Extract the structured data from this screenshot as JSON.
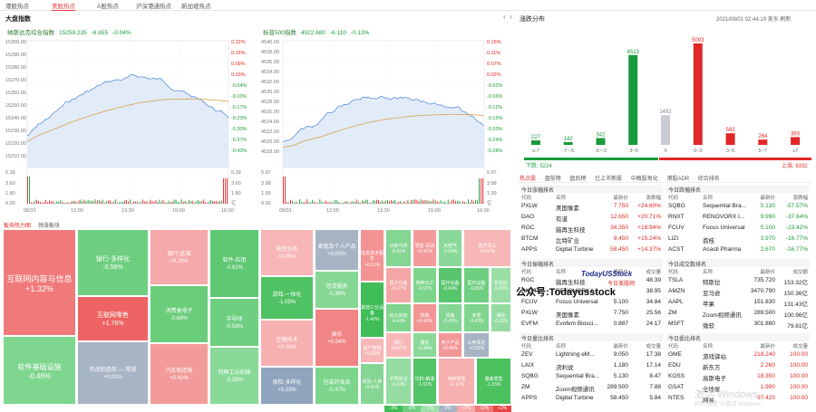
{
  "colors": {
    "up": "#e02626",
    "down": "#1a9a3a",
    "line": "#5b8fd9",
    "avg": "#d9a04a",
    "fill": "#dbe7f8"
  },
  "top_tabs": [
    "港股热点",
    "美股热点",
    "A股热点",
    "沪深港通热点",
    "新加坡热点"
  ],
  "top_tabs_active": 1,
  "section_title": "大盘指数",
  "panel1": {
    "name": "纳斯达克综合指数",
    "value": "15259.235",
    "chg": "-6.655",
    "pct": "-0.04%",
    "left_ticks": [
      "15300.00",
      "15290.00",
      "15280.00",
      "15270.00",
      "15260.00",
      "15250.00",
      "15240.00",
      "15230.00",
      "15220.00",
      "15210.00"
    ],
    "right_ticks": [
      "0.22%",
      "0.16%",
      "0.09%",
      "0.03%",
      "-0.04%",
      "-0.10%",
      "-0.17%",
      "-0.23%",
      "-0.30%",
      "-0.37%",
      "-0.43%"
    ],
    "vol_left": [
      "5.39",
      "3.60",
      "1.80",
      "0.00"
    ],
    "vol_right": [
      "5.39",
      "3.60",
      "1.80",
      "亿"
    ],
    "x_labels": [
      "08/31",
      "12:00",
      "13:30",
      "15:00",
      "16:00"
    ]
  },
  "panel2": {
    "name": "标普500指数",
    "value": "4522.680",
    "chg": "-6.110",
    "pct": "-0.13%",
    "left_ticks": [
      "4540.00",
      "4538.00",
      "4536.00",
      "4534.00",
      "4532.00",
      "4530.00",
      "4528.00",
      "4526.00",
      "4524.00",
      "4522.00",
      "4520.00",
      "4518.00"
    ],
    "right_ticks": [
      "0.16%",
      "0.11%",
      "0.07%",
      "0.02%",
      "-0.02%",
      "-0.06%",
      "-0.11%",
      "-0.15%",
      "-0.20%",
      "-0.24%",
      "-0.28%"
    ],
    "vol_left": [
      "5.97",
      "3.98",
      "1.99",
      "0.00"
    ],
    "vol_right": [
      "5.97",
      "3.98",
      "1.99",
      "亿"
    ],
    "x_labels": [
      "08/31",
      "12:00",
      "13:30",
      "15:00",
      "16:00"
    ]
  },
  "dist": {
    "title": "涨跌分布",
    "timestamp": "2021/09/01 02:44:19 美东",
    "refresh": "刷新",
    "down_label": "下跌: 5224",
    "up_label": "上涨: 6332"
  },
  "chart_data": {
    "type": "bar",
    "categories": [
      "≤-7",
      "-7~-5",
      "-5~-3",
      "-3~0",
      "0",
      "0~3",
      "3~5",
      "5~7",
      "≥7"
    ],
    "values": [
      227,
      142,
      342,
      4513,
      1492,
      5093,
      582,
      264,
      393
    ],
    "colors": [
      "#1a9a3a",
      "#1a9a3a",
      "#1a9a3a",
      "#1a9a3a",
      "#c9ccd2",
      "#e02626",
      "#e02626",
      "#e02626",
      "#e02626"
    ]
  },
  "heat": {
    "tabs": [
      "板块热力图",
      "领涨板块"
    ],
    "tiles": [
      {
        "name": "互联网内容与信息",
        "pct": "+1.32%",
        "color": "#f07a7a"
      },
      {
        "name": "软件基础设施",
        "pct": "-0.46%",
        "color": "#7fd68f"
      },
      {
        "name": "银行-多样化",
        "pct": "-0.56%",
        "color": "#6fcf80"
      },
      {
        "name": "互联网零售",
        "pct": "+1.76%",
        "color": "#ee6464"
      },
      {
        "name": "药品制造商 — 常规",
        "pct": "+0.01%",
        "color": "#a7b4c4"
      },
      {
        "name": "银行-区域",
        "pct": "+0.25%",
        "color": "#f5a9a9"
      },
      {
        "name": "消费类电子",
        "pct": "-0.68%",
        "color": "#6acd7b"
      },
      {
        "name": "汽车制造商",
        "pct": "+0.41%",
        "color": "#f39b9b"
      },
      {
        "name": "软件-应用",
        "pct": "-0.81%",
        "color": "#5fc872"
      },
      {
        "name": "半导体",
        "pct": "-0.59%",
        "color": "#6fcf80"
      },
      {
        "name": "特种工业机械",
        "pct": "-0.35%",
        "color": "#8ad998"
      },
      {
        "name": "电信业务",
        "pct": "+0.05%",
        "color": "#f7b7b7"
      },
      {
        "name": "游戏-一体化",
        "pct": "-1.05%",
        "color": "#4fc263"
      },
      {
        "name": "生物技术",
        "pct": "+0.10%",
        "color": "#f6b0b0"
      },
      {
        "name": "保险-多样化",
        "pct": "+0.03%",
        "color": "#8fa4bd"
      },
      {
        "name": "家庭及个人产品",
        "pct": "+0.00%",
        "color": "#a7b4c4"
      },
      {
        "name": "信贷服务",
        "pct": "-0.39%",
        "color": "#86d794"
      },
      {
        "name": "娱乐",
        "pct": "+0.94%",
        "color": "#f18585"
      },
      {
        "name": "包装的食品",
        "pct": "-0.47%",
        "color": "#7cd58b"
      },
      {
        "name": "信息技术服务",
        "pct": "+0.51%",
        "color": "#f39393"
      },
      {
        "name": "其他工业设备",
        "pct": "-1.42%",
        "color": "#3fbd56"
      },
      {
        "name": "资产管理",
        "pct": "+0.05%",
        "color": "#f7b7b7"
      },
      {
        "name": "保险-人寿",
        "pct": "-0.41%",
        "color": "#84d692"
      },
      {
        "name": "诊断与研",
        "pct": "-0.41%",
        "color": "#84d692"
      },
      {
        "name": "医疗设备",
        "pct": "+0.27%",
        "color": "#f5a7a7"
      },
      {
        "name": "综合其他",
        "pct": "-0.43%",
        "color": "#80d58e"
      },
      {
        "name": "银行",
        "pct": "+0.07%",
        "color": "#f7b7b7"
      },
      {
        "name": "铁路",
        "pct": "+0.49%",
        "color": "#f39595"
      },
      {
        "name": "服务",
        "pct": "-0.34%",
        "color": "#8ad998"
      },
      {
        "name": "零售-百货",
        "pct": "+0.41%",
        "color": "#f39b9b"
      },
      {
        "name": "特种化工",
        "pct": "-0.51%",
        "color": "#7cd58b"
      },
      {
        "name": "医疗设备",
        "pct": "-0.94%",
        "color": "#57c56b"
      },
      {
        "name": "天然气",
        "pct": "-0.34%",
        "color": "#8ad998"
      },
      {
        "name": "铁路",
        "pct": "-0.42%",
        "color": "#84d692"
      },
      {
        "name": "饮料-酿酒",
        "pct": "-1.01%",
        "color": "#52c366"
      },
      {
        "name": "半导体设",
        "pct": "-0.12%",
        "color": "#94dca1"
      },
      {
        "name": "医疗设备",
        "pct": "-0.56%",
        "color": "#6fcf80"
      },
      {
        "name": "家居",
        "pct": "-0.43%",
        "color": "#80d58e"
      },
      {
        "name": "电子产品",
        "pct": "+0.45%",
        "color": "#f39797"
      },
      {
        "name": "航天军工",
        "pct": "+0.07%",
        "color": "#f7b7b7"
      },
      {
        "name": "折扣店",
        "pct": "-0.05%",
        "color": "#99dea5"
      },
      {
        "name": "保险",
        "pct": "-0.16%",
        "color": "#93dba0"
      },
      {
        "name": "公用事业",
        "pct": "+0.02%",
        "color": "#a7b4c4"
      },
      {
        "name": "特种零售",
        "pct": "+0.12%",
        "color": "#f6b0b0"
      },
      {
        "name": "服装零售",
        "pct": "-1.15%",
        "color": "#4bc160"
      }
    ],
    "legend": [
      "-3%",
      "-2%",
      "-1%",
      "0%",
      "+1%",
      "+2%",
      "+3%"
    ],
    "legend_colors": [
      "#3fbd56",
      "#6fcf80",
      "#9ee0aa",
      "#a7b4c4",
      "#f6a9a9",
      "#f07a7a",
      "#e84545"
    ]
  },
  "bottom_tabs": [
    "热点股",
    "盘前榜",
    "盘后榜",
    "已上市新股",
    "中概股每化",
    "港股ADR",
    "综合排名"
  ],
  "tables": {
    "headers": [
      "代码",
      "名称",
      "最新价",
      "涨跌幅"
    ],
    "headers_vol": [
      "代码",
      "名称",
      "最新价",
      "成交量"
    ],
    "headers_amt": [
      "代码",
      "名称",
      "最新价",
      "成交额"
    ],
    "titles": [
      "今日涨幅排名",
      "今日跌幅排名",
      "今日振幅排名",
      "今日成交数排名",
      "今日量比排名",
      "今日委比排名"
    ],
    "gainers": [
      [
        "PXLW",
        "美国像素",
        "7.750",
        "+24.60%"
      ],
      [
        "DAO",
        "有道",
        "12.650",
        "+20.71%"
      ],
      [
        "RGC",
        "脑再生科技",
        "34.350",
        "+18.94%"
      ],
      [
        "BTCM",
        "比特矿业",
        "9.450",
        "+15.24%"
      ],
      [
        "APPS",
        "Digital Turbine",
        "58.450",
        "+14.37%"
      ]
    ],
    "losers": [
      [
        "SQBG",
        "Sequential Bra...",
        "5.130",
        "-57.57%"
      ],
      [
        "RNXT",
        "RENOVORX I...",
        "9.990",
        "-37.64%"
      ],
      [
        "FCUV",
        "Focus Universal",
        "5.100",
        "-23.42%"
      ],
      [
        "LIZI",
        "荔枝",
        "3.970",
        "-16.77%"
      ],
      [
        "ACST",
        "Acasti Pharma",
        "2.670",
        "-16.77%"
      ]
    ],
    "amp": [
      [
        "RGC",
        "脑再生科技",
        "",
        "48.39"
      ],
      [
        "RNXT",
        "RENOVORX I...",
        "",
        "38.95"
      ],
      [
        "FCUV",
        "Focus Universal",
        "5.100",
        "34.84"
      ],
      [
        "PXLW",
        "美国像素",
        "7.750",
        "25.56"
      ],
      [
        "EVFM",
        "Evofem Biosci...",
        "0.887",
        "24.17"
      ]
    ],
    "turnover": [
      [
        "TSLA",
        "特斯拉",
        "735.720",
        "153.32亿"
      ],
      [
        "AMZN",
        "亚马逊",
        "3470.790",
        "150.36亿"
      ],
      [
        "AAPL",
        "苹果",
        "151.830",
        "131.43亿"
      ],
      [
        "ZM",
        "Zoom视频通讯",
        "289.500",
        "100.96亿"
      ],
      [
        "MSFT",
        "微软",
        "301.880",
        "79.61亿"
      ]
    ],
    "ratio": [
      [
        "ZEV",
        "Lightning eM...",
        "9.050",
        "17.38"
      ],
      [
        "LAIX",
        "流利说",
        "1.180",
        "17.14"
      ],
      [
        "SQBG",
        "Sequential Bra...",
        "5.130",
        "8.47"
      ],
      [
        "ZM",
        "Zoom视频通讯",
        "289.500",
        "7.88"
      ],
      [
        "APPS",
        "Digital Turbine",
        "58.450",
        "5.84"
      ]
    ],
    "commit": [
      [
        "GME",
        "游戏驿站",
        "218.240",
        "100.00"
      ],
      [
        "EDU",
        "新东方",
        "2.260",
        "100.00"
      ],
      [
        "KOSS",
        "高斯电子",
        "18.350",
        "100.00"
      ],
      [
        "GSAT",
        "全球星",
        "1.990",
        "100.00"
      ],
      [
        "NTES",
        "网易",
        "97.420",
        "100.00"
      ]
    ]
  },
  "overlay": {
    "brand": "TodayUSStock",
    "sub": "今日美股网",
    "wechat": "公众号:Todayusstock",
    "win1": "激活 Windows",
    "win2": "转到\"设置\"以激活 Windows。"
  }
}
